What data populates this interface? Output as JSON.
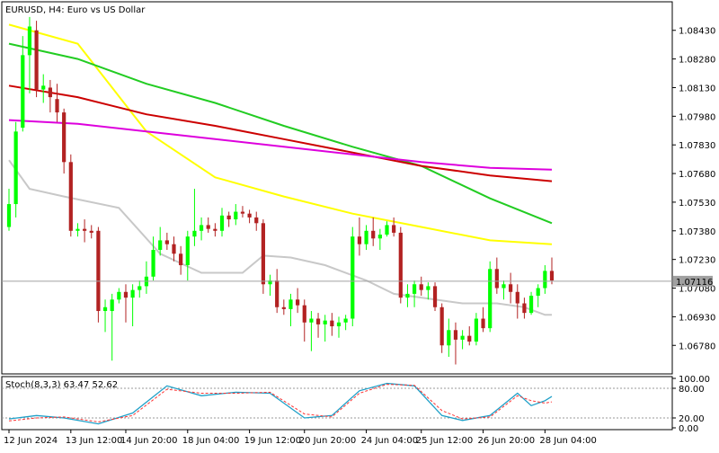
{
  "chart": {
    "title": "EURUSD, H4:  Euro vs US Dollar",
    "current_price_label": "1.07116",
    "price_ticks": [
      "1.08430",
      "1.08280",
      "1.08130",
      "1.07980",
      "1.07830",
      "1.07680",
      "1.07530",
      "1.07380",
      "1.07230",
      "1.07080",
      "1.06930",
      "1.06780"
    ],
    "time_ticks": [
      "12 Jun 2024",
      "13 Jun 12:00",
      "14 Jun 20:00",
      "18 Jun 04:00",
      "19 Jun 12:00",
      "20 Jun 20:00",
      "24 Jun 04:00",
      "25 Jun 12:00",
      "26 Jun 20:00",
      "28 Jun 04:00"
    ],
    "stoch": {
      "label": "Stoch(8,3,3) 63.47 52.62",
      "axis_labels": [
        "100.00",
        "80.00",
        "20.00",
        "0.00"
      ]
    },
    "colors": {
      "bull": "#00ff00",
      "bear": "#b22222",
      "ma_yellow": "#ffff00",
      "ma_green": "#22cc22",
      "ma_red": "#cc0000",
      "ma_magenta": "#dd00dd",
      "ma_gray": "#c8c8c8",
      "stoch_main": "#1fa0c8",
      "stoch_signal": "#ff3333",
      "price_line": "#a0a0a0"
    }
  },
  "chart_data": {
    "type": "candlestick",
    "symbol": "EURUSD",
    "timeframe": "H4",
    "ylim": [
      1.0664,
      1.0857
    ],
    "current_price": 1.07116,
    "candles": [
      {
        "o": 1.074,
        "h": 1.076,
        "l": 1.0738,
        "c": 1.0752
      },
      {
        "o": 1.0752,
        "h": 1.0795,
        "l": 1.0745,
        "c": 1.079
      },
      {
        "o": 1.0792,
        "h": 1.084,
        "l": 1.079,
        "c": 1.083
      },
      {
        "o": 1.083,
        "h": 1.085,
        "l": 1.081,
        "c": 1.0845
      },
      {
        "o": 1.0843,
        "h": 1.0848,
        "l": 1.0808,
        "c": 1.0812
      },
      {
        "o": 1.0812,
        "h": 1.082,
        "l": 1.0805,
        "c": 1.0814
      },
      {
        "o": 1.0813,
        "h": 1.0817,
        "l": 1.08,
        "c": 1.0808
      },
      {
        "o": 1.0807,
        "h": 1.0815,
        "l": 1.0795,
        "c": 1.08
      },
      {
        "o": 1.08,
        "h": 1.0802,
        "l": 1.0768,
        "c": 1.0774
      },
      {
        "o": 1.0774,
        "h": 1.0778,
        "l": 1.0735,
        "c": 1.0738
      },
      {
        "o": 1.0738,
        "h": 1.0742,
        "l": 1.0735,
        "c": 1.0739
      },
      {
        "o": 1.0739,
        "h": 1.0744,
        "l": 1.0732,
        "c": 1.0738
      },
      {
        "o": 1.0738,
        "h": 1.0741,
        "l": 1.0734,
        "c": 1.0737
      },
      {
        "o": 1.0738,
        "h": 1.074,
        "l": 1.069,
        "c": 1.0696
      },
      {
        "o": 1.0696,
        "h": 1.0702,
        "l": 1.0685,
        "c": 1.0698
      },
      {
        "o": 1.0696,
        "h": 1.0705,
        "l": 1.067,
        "c": 1.0702
      },
      {
        "o": 1.0702,
        "h": 1.0708,
        "l": 1.07,
        "c": 1.0706
      },
      {
        "o": 1.0706,
        "h": 1.071,
        "l": 1.069,
        "c": 1.0703
      },
      {
        "o": 1.0703,
        "h": 1.071,
        "l": 1.0688,
        "c": 1.0707
      },
      {
        "o": 1.0707,
        "h": 1.0712,
        "l": 1.0703,
        "c": 1.0709
      },
      {
        "o": 1.0709,
        "h": 1.0722,
        "l": 1.0705,
        "c": 1.0714
      },
      {
        "o": 1.0714,
        "h": 1.0735,
        "l": 1.0712,
        "c": 1.0728
      },
      {
        "o": 1.0728,
        "h": 1.074,
        "l": 1.0725,
        "c": 1.0733
      },
      {
        "o": 1.0733,
        "h": 1.0737,
        "l": 1.0728,
        "c": 1.0731
      },
      {
        "o": 1.0731,
        "h": 1.0735,
        "l": 1.0722,
        "c": 1.0726
      },
      {
        "o": 1.0726,
        "h": 1.073,
        "l": 1.0715,
        "c": 1.072
      },
      {
        "o": 1.072,
        "h": 1.0738,
        "l": 1.0712,
        "c": 1.0735
      },
      {
        "o": 1.0735,
        "h": 1.076,
        "l": 1.073,
        "c": 1.0738
      },
      {
        "o": 1.0738,
        "h": 1.0745,
        "l": 1.0733,
        "c": 1.0741
      },
      {
        "o": 1.0741,
        "h": 1.0745,
        "l": 1.0737,
        "c": 1.0739
      },
      {
        "o": 1.0739,
        "h": 1.0742,
        "l": 1.0735,
        "c": 1.0738
      },
      {
        "o": 1.0738,
        "h": 1.075,
        "l": 1.0735,
        "c": 1.0746
      },
      {
        "o": 1.0746,
        "h": 1.0748,
        "l": 1.074,
        "c": 1.0744
      },
      {
        "o": 1.0744,
        "h": 1.0752,
        "l": 1.0741,
        "c": 1.0748
      },
      {
        "o": 1.0748,
        "h": 1.0751,
        "l": 1.0745,
        "c": 1.0747
      },
      {
        "o": 1.0747,
        "h": 1.0749,
        "l": 1.0742,
        "c": 1.0745
      },
      {
        "o": 1.0745,
        "h": 1.0748,
        "l": 1.0738,
        "c": 1.0742
      },
      {
        "o": 1.0742,
        "h": 1.0744,
        "l": 1.0705,
        "c": 1.071
      },
      {
        "o": 1.071,
        "h": 1.0715,
        "l": 1.0704,
        "c": 1.0712
      },
      {
        "o": 1.0712,
        "h": 1.0718,
        "l": 1.0695,
        "c": 1.0698
      },
      {
        "o": 1.0698,
        "h": 1.0702,
        "l": 1.0694,
        "c": 1.0697
      },
      {
        "o": 1.0697,
        "h": 1.0705,
        "l": 1.0688,
        "c": 1.0702
      },
      {
        "o": 1.0702,
        "h": 1.0708,
        "l": 1.0695,
        "c": 1.0699
      },
      {
        "o": 1.0699,
        "h": 1.0702,
        "l": 1.068,
        "c": 1.069
      },
      {
        "o": 1.069,
        "h": 1.0696,
        "l": 1.0675,
        "c": 1.0692
      },
      {
        "o": 1.0692,
        "h": 1.0695,
        "l": 1.0682,
        "c": 1.0689
      },
      {
        "o": 1.0689,
        "h": 1.0694,
        "l": 1.068,
        "c": 1.0691
      },
      {
        "o": 1.0691,
        "h": 1.0695,
        "l": 1.0683,
        "c": 1.0688
      },
      {
        "o": 1.0688,
        "h": 1.0693,
        "l": 1.0682,
        "c": 1.069
      },
      {
        "o": 1.069,
        "h": 1.0694,
        "l": 1.0686,
        "c": 1.0692
      },
      {
        "o": 1.0692,
        "h": 1.074,
        "l": 1.0688,
        "c": 1.0735
      },
      {
        "o": 1.0735,
        "h": 1.0745,
        "l": 1.0725,
        "c": 1.0731
      },
      {
        "o": 1.0731,
        "h": 1.0741,
        "l": 1.0728,
        "c": 1.0738
      },
      {
        "o": 1.0738,
        "h": 1.0745,
        "l": 1.073,
        "c": 1.0734
      },
      {
        "o": 1.0734,
        "h": 1.0739,
        "l": 1.0728,
        "c": 1.0736
      },
      {
        "o": 1.0736,
        "h": 1.0743,
        "l": 1.0735,
        "c": 1.0741
      },
      {
        "o": 1.0741,
        "h": 1.0745,
        "l": 1.0735,
        "c": 1.0737
      },
      {
        "o": 1.0737,
        "h": 1.074,
        "l": 1.07,
        "c": 1.0703
      },
      {
        "o": 1.0703,
        "h": 1.071,
        "l": 1.0698,
        "c": 1.0705
      },
      {
        "o": 1.0705,
        "h": 1.0712,
        "l": 1.0698,
        "c": 1.071
      },
      {
        "o": 1.071,
        "h": 1.0714,
        "l": 1.0704,
        "c": 1.0707
      },
      {
        "o": 1.0707,
        "h": 1.0711,
        "l": 1.0702,
        "c": 1.0709
      },
      {
        "o": 1.0709,
        "h": 1.0711,
        "l": 1.0696,
        "c": 1.0698
      },
      {
        "o": 1.0698,
        "h": 1.07,
        "l": 1.0674,
        "c": 1.0678
      },
      {
        "o": 1.0678,
        "h": 1.0692,
        "l": 1.0672,
        "c": 1.0686
      },
      {
        "o": 1.0686,
        "h": 1.069,
        "l": 1.0668,
        "c": 1.0681
      },
      {
        "o": 1.0681,
        "h": 1.0686,
        "l": 1.0676,
        "c": 1.0683
      },
      {
        "o": 1.0683,
        "h": 1.0688,
        "l": 1.0678,
        "c": 1.068
      },
      {
        "o": 1.068,
        "h": 1.0695,
        "l": 1.0678,
        "c": 1.0692
      },
      {
        "o": 1.0692,
        "h": 1.0698,
        "l": 1.0685,
        "c": 1.0687
      },
      {
        "o": 1.0687,
        "h": 1.0722,
        "l": 1.0685,
        "c": 1.0718
      },
      {
        "o": 1.0718,
        "h": 1.0724,
        "l": 1.0705,
        "c": 1.0708
      },
      {
        "o": 1.0708,
        "h": 1.0712,
        "l": 1.0702,
        "c": 1.071
      },
      {
        "o": 1.071,
        "h": 1.0716,
        "l": 1.07,
        "c": 1.0706
      },
      {
        "o": 1.0706,
        "h": 1.071,
        "l": 1.0692,
        "c": 1.07
      },
      {
        "o": 1.07,
        "h": 1.0703,
        "l": 1.0692,
        "c": 1.0695
      },
      {
        "o": 1.0695,
        "h": 1.0706,
        "l": 1.0694,
        "c": 1.0704
      },
      {
        "o": 1.0704,
        "h": 1.071,
        "l": 1.0698,
        "c": 1.0708
      },
      {
        "o": 1.0708,
        "h": 1.072,
        "l": 1.0705,
        "c": 1.0717
      },
      {
        "o": 1.0717,
        "h": 1.0724,
        "l": 1.071,
        "c": 1.0712
      }
    ],
    "moving_averages": [
      {
        "color": "yellow",
        "values": [
          [
            0,
            1.0846
          ],
          [
            10,
            1.0836
          ],
          [
            20,
            1.079
          ],
          [
            30,
            1.0766
          ],
          [
            40,
            1.0756
          ],
          [
            50,
            1.0747
          ],
          [
            60,
            1.074
          ],
          [
            70,
            1.0733
          ],
          [
            79,
            1.0731
          ]
        ]
      },
      {
        "color": "green",
        "values": [
          [
            0,
            1.0836
          ],
          [
            10,
            1.0828
          ],
          [
            20,
            1.0815
          ],
          [
            30,
            1.0805
          ],
          [
            40,
            1.0793
          ],
          [
            50,
            1.0782
          ],
          [
            60,
            1.0772
          ],
          [
            70,
            1.0755
          ],
          [
            79,
            1.0742
          ]
        ]
      },
      {
        "color": "red",
        "values": [
          [
            0,
            1.0814
          ],
          [
            10,
            1.0808
          ],
          [
            20,
            1.0799
          ],
          [
            30,
            1.0793
          ],
          [
            40,
            1.0786
          ],
          [
            50,
            1.0779
          ],
          [
            60,
            1.0772
          ],
          [
            70,
            1.0767
          ],
          [
            79,
            1.0764
          ]
        ]
      },
      {
        "color": "magenta",
        "values": [
          [
            0,
            1.0796
          ],
          [
            10,
            1.0794
          ],
          [
            20,
            1.079
          ],
          [
            30,
            1.0786
          ],
          [
            40,
            1.0782
          ],
          [
            50,
            1.0778
          ],
          [
            60,
            1.0774
          ],
          [
            70,
            1.0771
          ],
          [
            79,
            1.077
          ]
        ]
      },
      {
        "color": "gray",
        "values": [
          [
            0,
            1.0775
          ],
          [
            3,
            1.076
          ],
          [
            8,
            1.0756
          ],
          [
            16,
            1.075
          ],
          [
            22,
            1.0726
          ],
          [
            28,
            1.0716
          ],
          [
            34,
            1.0716
          ],
          [
            37,
            1.0725
          ],
          [
            41,
            1.0724
          ],
          [
            46,
            1.072
          ],
          [
            52,
            1.0712
          ],
          [
            56,
            1.0705
          ],
          [
            62,
            1.0702
          ],
          [
            66,
            1.07
          ],
          [
            71,
            1.07
          ],
          [
            75,
            1.0698
          ],
          [
            78,
            1.0694
          ],
          [
            79,
            1.0694
          ]
        ]
      }
    ],
    "stochastic": {
      "main": [
        [
          0,
          18
        ],
        [
          4,
          25
        ],
        [
          8,
          20
        ],
        [
          13,
          8
        ],
        [
          18,
          30
        ],
        [
          23,
          85
        ],
        [
          28,
          65
        ],
        [
          33,
          72
        ],
        [
          38,
          70
        ],
        [
          43,
          20
        ],
        [
          47,
          25
        ],
        [
          51,
          75
        ],
        [
          55,
          90
        ],
        [
          59,
          85
        ],
        [
          63,
          25
        ],
        [
          66,
          15
        ],
        [
          70,
          25
        ],
        [
          74,
          70
        ],
        [
          76,
          45
        ],
        [
          78,
          55
        ],
        [
          79,
          63.47
        ]
      ],
      "signal": [
        [
          0,
          14
        ],
        [
          4,
          20
        ],
        [
          8,
          22
        ],
        [
          13,
          12
        ],
        [
          18,
          25
        ],
        [
          23,
          78
        ],
        [
          28,
          70
        ],
        [
          33,
          70
        ],
        [
          38,
          72
        ],
        [
          43,
          28
        ],
        [
          47,
          22
        ],
        [
          51,
          70
        ],
        [
          55,
          88
        ],
        [
          59,
          86
        ],
        [
          63,
          35
        ],
        [
          66,
          18
        ],
        [
          70,
          22
        ],
        [
          74,
          65
        ],
        [
          76,
          55
        ],
        [
          78,
          50
        ],
        [
          79,
          52.62
        ]
      ],
      "levels": [
        80,
        20
      ],
      "ylim": [
        0,
        100
      ]
    }
  }
}
